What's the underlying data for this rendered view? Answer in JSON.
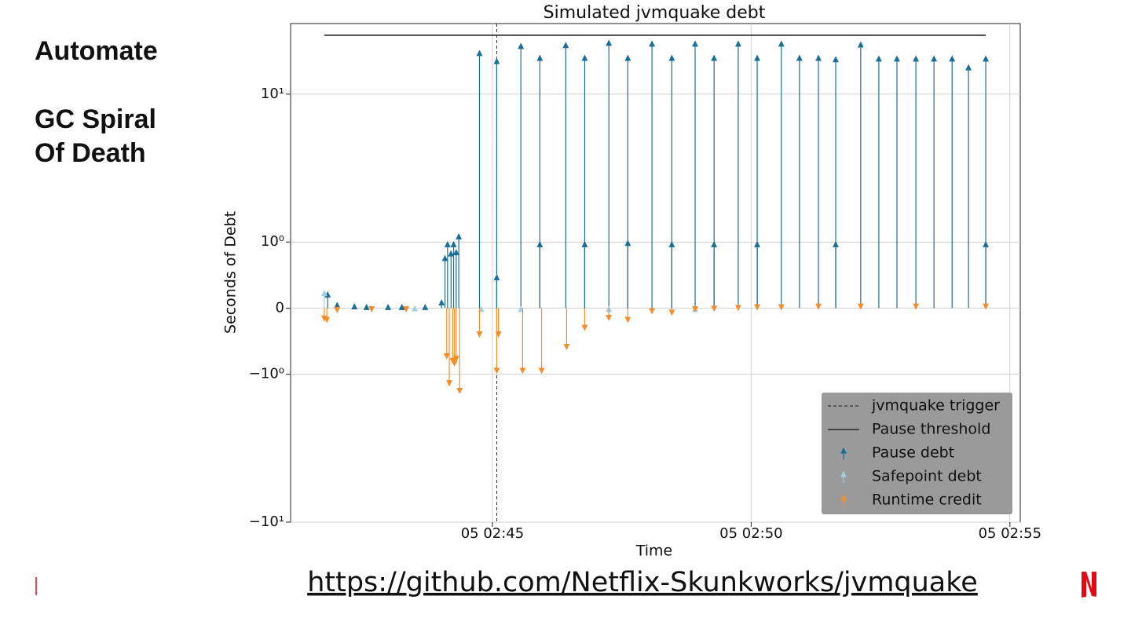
{
  "slide": {
    "heading": "Automate",
    "subheading": [
      "GC Spiral",
      "Of Death"
    ],
    "link": "https://github.com/Netflix-Skunkworks/jvmquake"
  },
  "chart_data": {
    "type": "arrow-stem",
    "title": "Simulated jvmquake debt",
    "x_label": "Time",
    "y_label": "Seconds of Debt",
    "yscale": "symlog",
    "linthresh": 1,
    "grid": true,
    "legend": "lower right",
    "xlim": [
      "05 02:41:06",
      "05 02:55:12"
    ],
    "xticks": [
      "05 02:45",
      "05 02:50",
      "05 02:55"
    ],
    "ylim": [
      -10,
      30
    ],
    "yticks": [
      {
        "value": -10,
        "label": "−10¹"
      },
      {
        "value": -1,
        "label": "−10⁰"
      },
      0,
      {
        "value": 1,
        "label": "10⁰"
      },
      {
        "value": 10,
        "label": "10¹"
      }
    ],
    "trigger": {
      "name": "jvmquake trigger",
      "x": "05 02:45:05",
      "color": "#333333"
    },
    "threshold": {
      "name": "Pause threshold",
      "value": 25,
      "color": "#111111"
    },
    "series": [
      {
        "name": "Pause debt",
        "color": "#1b6f97",
        "x": [
          "05 02:41:49",
          "05 02:42:00",
          "05 02:42:20",
          "05 02:42:34",
          "05 02:42:59",
          "05 02:43:15",
          "05 02:43:42",
          "05 02:44:01",
          "05 02:44:05",
          "05 02:44:08",
          "05 02:44:12",
          "05 02:44:15",
          "05 02:44:18",
          "05 02:44:21",
          "05 02:44:45",
          "05 02:45:05",
          "05 02:45:05",
          "05 02:45:33",
          "05 02:45:55",
          "05 02:45:55",
          "05 02:46:25",
          "05 02:46:47",
          "05 02:46:47",
          "05 02:47:15",
          "05 02:47:37",
          "05 02:47:37",
          "05 02:48:05",
          "05 02:48:28",
          "05 02:48:28",
          "05 02:48:55",
          "05 02:49:17",
          "05 02:49:17",
          "05 02:49:45",
          "05 02:50:07",
          "05 02:50:07",
          "05 02:50:35",
          "05 02:50:56",
          "05 02:51:18",
          "05 02:51:38",
          "05 02:51:38",
          "05 02:52:07",
          "05 02:52:28",
          "05 02:52:49",
          "05 02:53:11",
          "05 02:53:32",
          "05 02:53:53",
          "05 02:54:12",
          "05 02:54:32",
          "05 02:54:32"
        ],
        "values": [
          0.24,
          0.08,
          0.06,
          0.05,
          0.05,
          0.05,
          0.05,
          0.12,
          0.79,
          1.0,
          0.86,
          1.0,
          0.88,
          1.13,
          19.6,
          17.3,
          0.5,
          21.9,
          18.2,
          1.0,
          22.2,
          18.2,
          1.0,
          23.0,
          18.2,
          1.02,
          22.7,
          18.2,
          1.0,
          22.7,
          18.2,
          1.0,
          22.7,
          18.2,
          1.0,
          22.7,
          18.2,
          18.2,
          17.8,
          1.0,
          22.4,
          18.0,
          18.0,
          18.0,
          18.0,
          18.0,
          15.7,
          18.0,
          1.0
        ]
      },
      {
        "name": "Safepoint debt",
        "color": "#a6cee3",
        "x": [
          "05 02:41:45",
          "05 02:43:30",
          "05 02:44:47",
          "05 02:45:33",
          "05 02:47:15",
          "05 02:48:55"
        ],
        "values": [
          0.26,
          0.03,
          0.02,
          0.02,
          0.02,
          0.02
        ]
      },
      {
        "name": "Runtime credit",
        "color": "#f28e2b",
        "x": [
          "05 02:41:45",
          "05 02:41:48",
          "05 02:42:00",
          "05 02:42:40",
          "05 02:43:20",
          "05 02:44:07",
          "05 02:44:10",
          "05 02:44:14",
          "05 02:44:16",
          "05 02:44:18",
          "05 02:44:22",
          "05 02:44:45",
          "05 02:45:05",
          "05 02:45:07",
          "05 02:45:35",
          "05 02:45:57",
          "05 02:46:26",
          "05 02:46:47",
          "05 02:47:15",
          "05 02:47:37",
          "05 02:48:05",
          "05 02:48:28",
          "05 02:48:55",
          "05 02:49:17",
          "05 02:49:45",
          "05 02:50:07",
          "05 02:50:35",
          "05 02:51:18",
          "05 02:52:07",
          "05 02:53:11",
          "05 02:54:32"
        ],
        "values": [
          -0.19,
          -0.21,
          -0.06,
          -0.05,
          -0.05,
          -0.76,
          -1.19,
          -0.83,
          -0.87,
          -0.8,
          -1.34,
          -0.43,
          -0.98,
          -0.43,
          -0.98,
          -0.98,
          -0.62,
          -0.33,
          -0.18,
          -0.21,
          -0.08,
          -0.1,
          -0.05,
          -0.04,
          -0.03,
          -0.02,
          -0.02,
          -0.01,
          -0.01,
          -0.01,
          -0.01
        ]
      }
    ]
  }
}
